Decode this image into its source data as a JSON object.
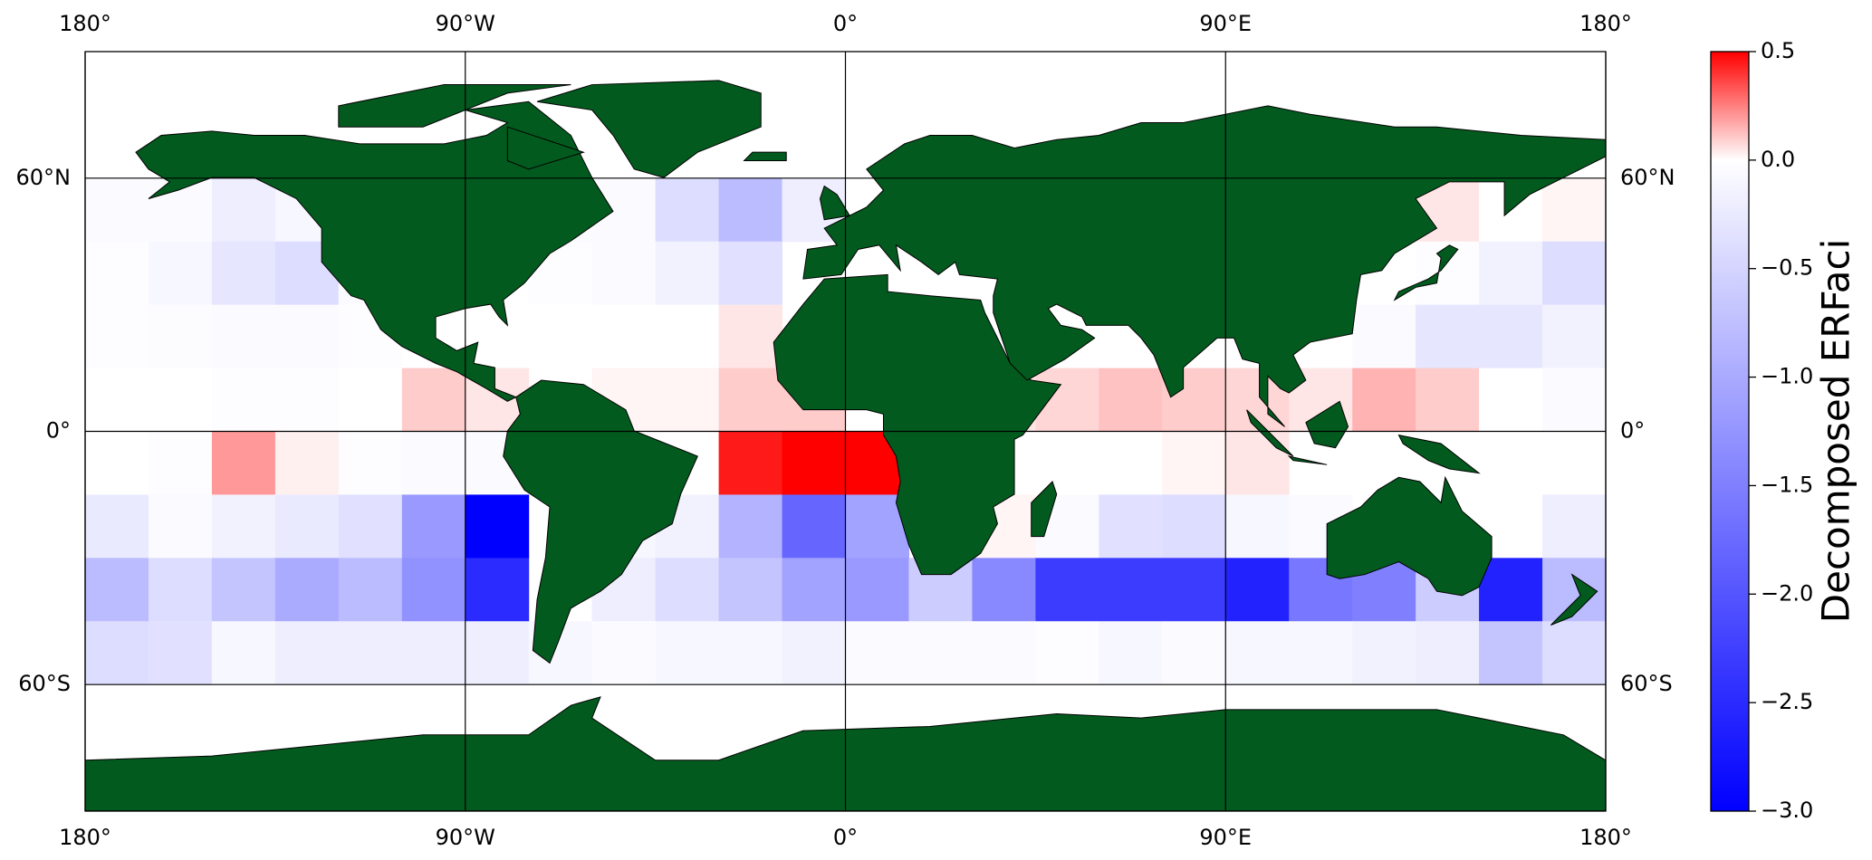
{
  "chart_data": {
    "type": "gridmap",
    "colorbar_label": "Decomposed ERFaci",
    "xlim": [
      -180,
      180
    ],
    "ylim": [
      -90,
      90
    ],
    "xticks": [
      {
        "value": -180,
        "label": "180°"
      },
      {
        "value": -90,
        "label": "90°W"
      },
      {
        "value": 0,
        "label": "0°"
      },
      {
        "value": 90,
        "label": "90°E"
      },
      {
        "value": 180,
        "label": "180°"
      }
    ],
    "yticks": [
      {
        "value": 60,
        "label": "60°N"
      },
      {
        "value": 0,
        "label": "0°"
      },
      {
        "value": -60,
        "label": "60°S"
      }
    ],
    "grid": true,
    "lon_edges": [
      -180,
      -165,
      -150,
      -135,
      -120,
      -105,
      -90,
      -75,
      -60,
      -45,
      -30,
      -15,
      0,
      15,
      30,
      45,
      60,
      75,
      90,
      105,
      120,
      135,
      150,
      165,
      180
    ],
    "lat_edges": [
      60,
      45,
      30,
      15,
      0,
      -15,
      -30,
      -45,
      -60
    ],
    "values": [
      [
        -0.05,
        -0.05,
        -0.2,
        -0.1,
        null,
        null,
        null,
        -0.05,
        -0.05,
        -0.4,
        -0.8,
        -0.2,
        null,
        null,
        null,
        null,
        null,
        null,
        null,
        null,
        null,
        0.05,
        0,
        0.02
      ],
      [
        -0.02,
        -0.1,
        -0.3,
        -0.4,
        -0.05,
        null,
        null,
        -0.02,
        -0.05,
        -0.15,
        -0.35,
        null,
        null,
        null,
        null,
        null,
        null,
        null,
        null,
        null,
        null,
        -0.02,
        -0.15,
        -0.4
      ],
      [
        -0.02,
        -0.03,
        -0.05,
        -0.05,
        -0.02,
        null,
        null,
        0,
        0,
        0,
        0.05,
        null,
        null,
        null,
        null,
        null,
        null,
        null,
        null,
        null,
        -0.05,
        -0.3,
        -0.3,
        -0.15
      ],
      [
        0,
        0,
        -0.02,
        -0.02,
        0,
        0.1,
        0.05,
        null,
        0.02,
        0.02,
        0.1,
        0.1,
        null,
        null,
        0.05,
        0.08,
        0.12,
        0.1,
        0.08,
        0.05,
        0.15,
        0.1,
        0,
        -0.05
      ],
      [
        0,
        -0.02,
        0.2,
        0.03,
        -0.02,
        -0.05,
        -0.05,
        null,
        null,
        0,
        0.45,
        0.5,
        0.5,
        null,
        0,
        0,
        0,
        0.02,
        0.05,
        null,
        null,
        0,
        0,
        0
      ],
      [
        -0.25,
        -0.05,
        -0.15,
        -0.25,
        -0.35,
        -1.2,
        -3.0,
        null,
        -0.1,
        -0.15,
        -0.9,
        -1.8,
        -1.1,
        null,
        0.02,
        -0.05,
        -0.35,
        -0.4,
        -0.1,
        -0.05,
        null,
        null,
        0,
        -0.2
      ],
      [
        -0.8,
        -0.4,
        -0.7,
        -1.0,
        -0.8,
        -1.3,
        -2.5,
        null,
        -0.2,
        -0.4,
        -0.7,
        -1.1,
        -1.2,
        -0.6,
        -1.4,
        -2.3,
        -2.3,
        -2.3,
        -2.6,
        -1.6,
        -1.5,
        -0.6,
        -2.6,
        -0.8
      ],
      [
        -0.4,
        -0.35,
        -0.1,
        -0.2,
        -0.2,
        -0.2,
        -0.2,
        -0.1,
        -0.05,
        -0.1,
        -0.1,
        -0.15,
        -0.05,
        -0.05,
        -0.05,
        -0.02,
        -0.1,
        -0.05,
        -0.1,
        -0.1,
        -0.15,
        -0.2,
        -0.7,
        -0.4
      ]
    ],
    "colormap": [
      "#0000ff",
      "#ffffff",
      "#ff0000"
    ],
    "clim": [
      -3.0,
      0.5
    ],
    "cticks": [
      {
        "value": 0.5,
        "label": "0.5"
      },
      {
        "value": 0.0,
        "label": "0.0"
      },
      {
        "value": -0.5,
        "label": "−0.5"
      },
      {
        "value": -1.0,
        "label": "−1.0"
      },
      {
        "value": -1.5,
        "label": "−1.5"
      },
      {
        "value": -2.0,
        "label": "−2.0"
      },
      {
        "value": -2.5,
        "label": "−2.5"
      },
      {
        "value": -3.0,
        "label": "−3.0"
      }
    ]
  }
}
